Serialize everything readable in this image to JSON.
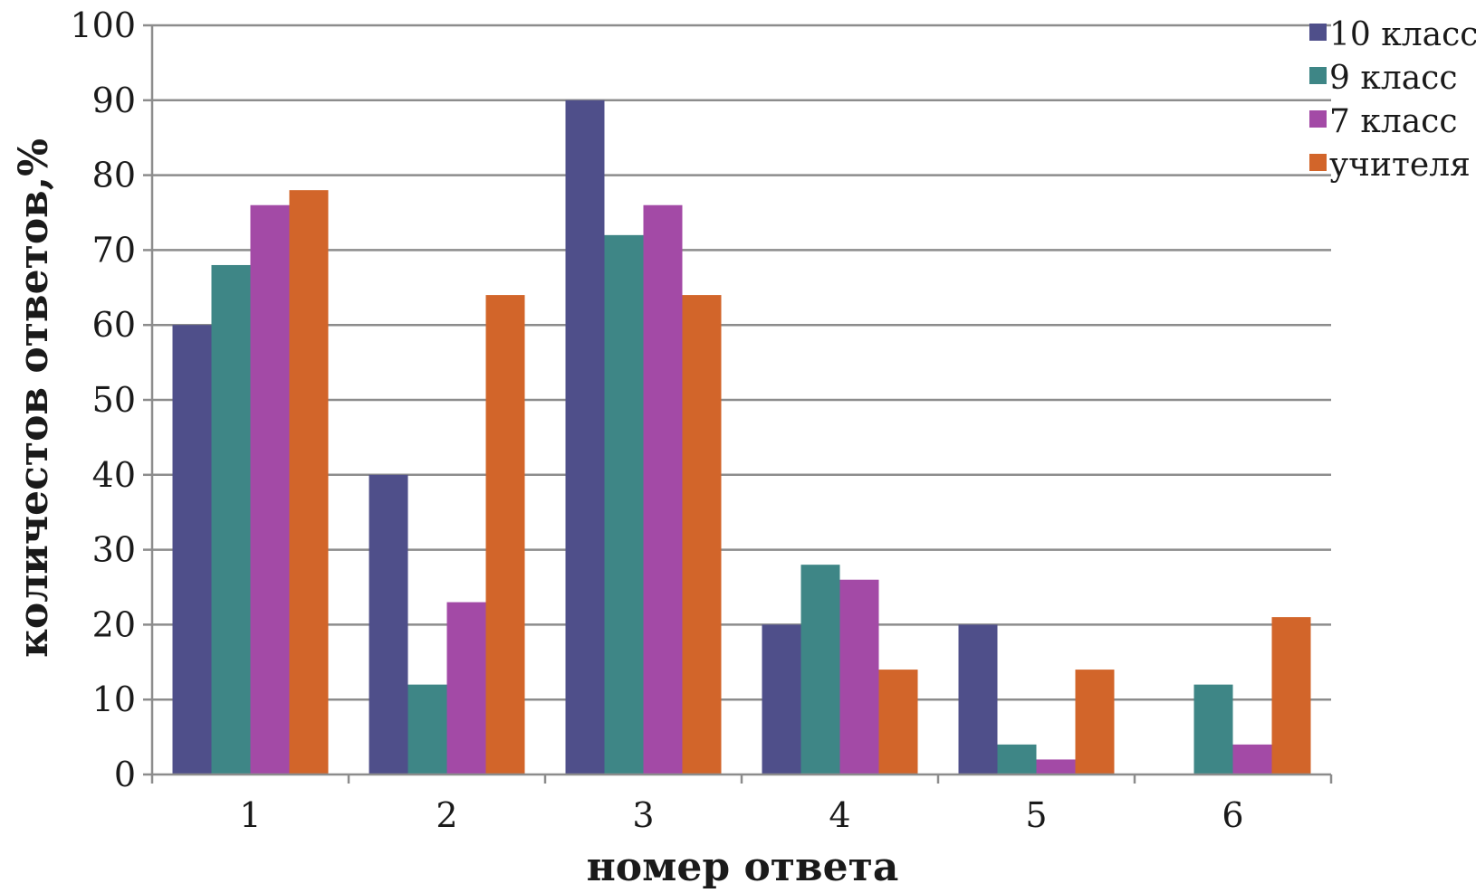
{
  "chart_data": {
    "type": "bar",
    "title": "",
    "xlabel": "номер ответа",
    "ylabel": "количестов ответов,%",
    "categories": [
      "1",
      "2",
      "3",
      "4",
      "5",
      "6"
    ],
    "ylim": [
      0,
      100
    ],
    "yticks": [
      0,
      10,
      20,
      30,
      40,
      50,
      60,
      70,
      80,
      90,
      100
    ],
    "grid": true,
    "legend_position": "top-right",
    "series": [
      {
        "name": "10 класс",
        "color": "#4f4f8a",
        "values": [
          60,
          40,
          90,
          20,
          20,
          0
        ]
      },
      {
        "name": "9 класс",
        "color": "#3e8686",
        "values": [
          68,
          12,
          72,
          28,
          4,
          12
        ]
      },
      {
        "name": "7 класс",
        "color": "#a34aa6",
        "values": [
          76,
          23,
          76,
          26,
          2,
          4
        ]
      },
      {
        "name": "учителя",
        "color": "#d2652a",
        "values": [
          78,
          64,
          64,
          14,
          14,
          21
        ]
      }
    ]
  }
}
